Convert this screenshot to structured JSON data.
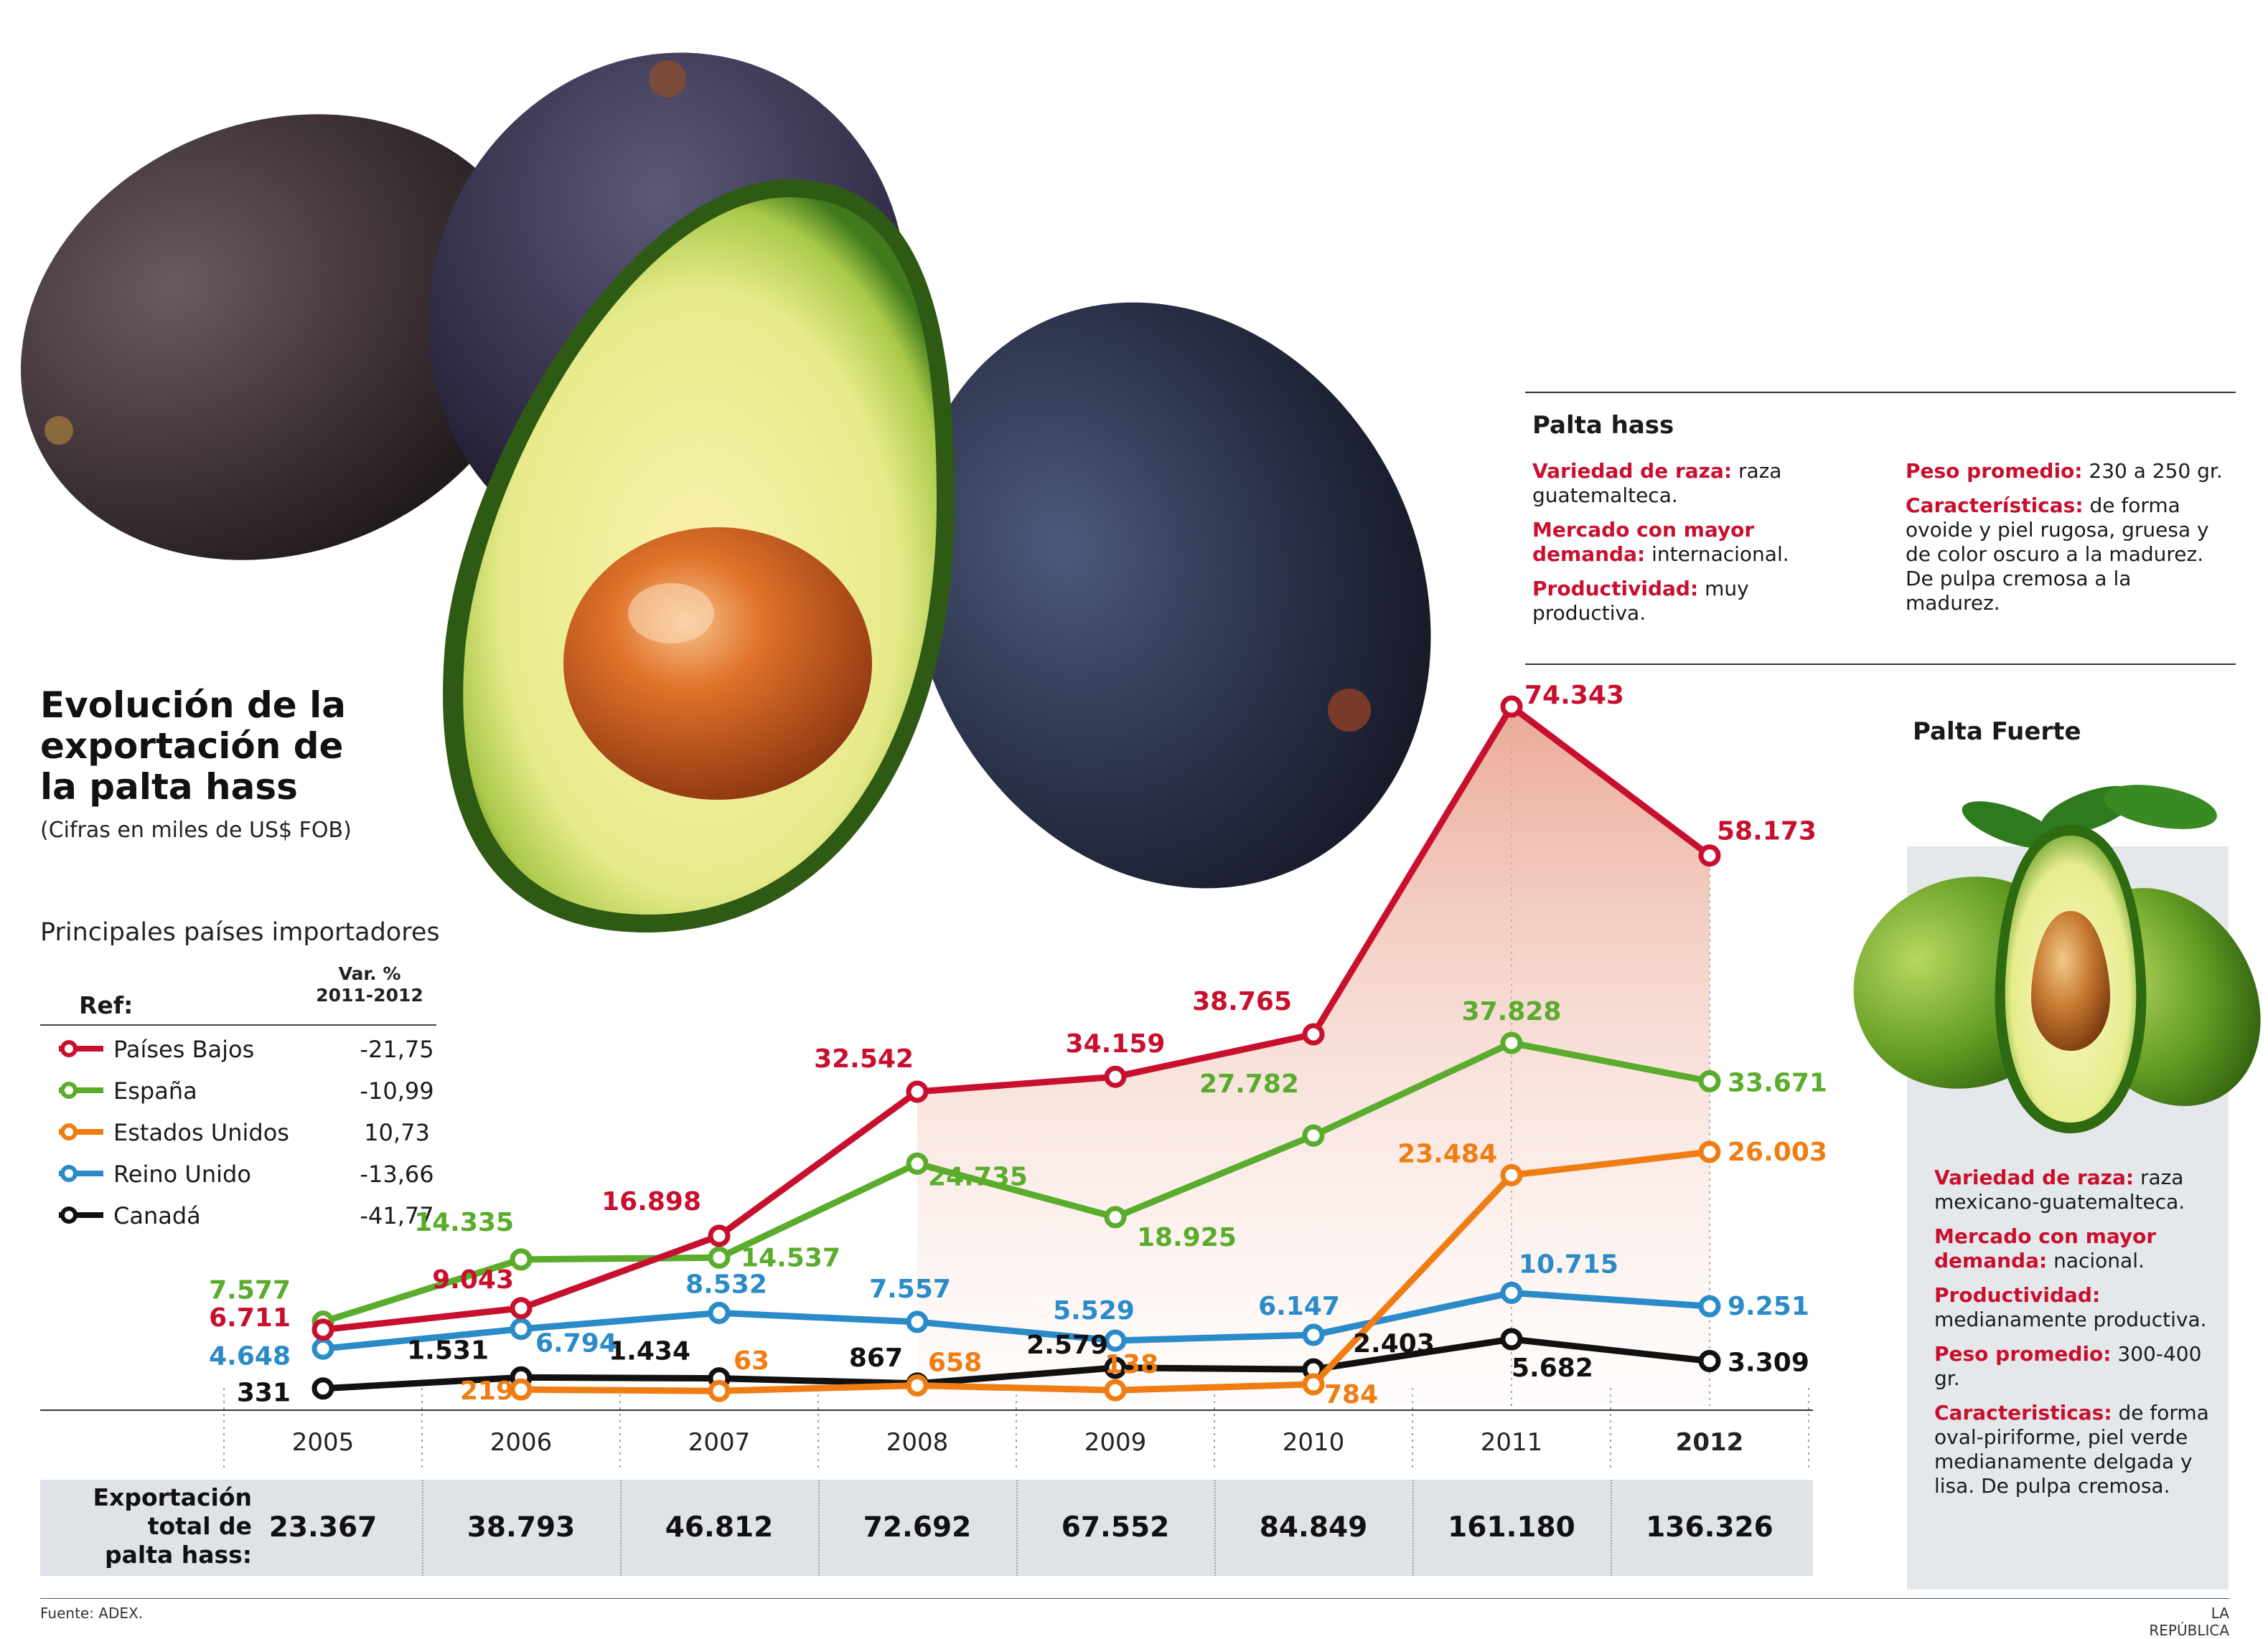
{
  "title_lines": [
    "Evolución de la",
    "exportación de",
    "la palta hass"
  ],
  "subtitle": "(Cifras en miles de US$ FOB)",
  "legend": {
    "title": "Principales países importadores",
    "ref_label": "Ref:",
    "var_header_1": "Var. %",
    "var_header_2": "2011-2012",
    "items": [
      {
        "name": "Países Bajos",
        "var": "-21,75",
        "color": "#c8102e"
      },
      {
        "name": "España",
        "var": "-10,99",
        "color": "#5aac2c"
      },
      {
        "name": "Estados Unidos",
        "var": "10,73",
        "color": "#f07d13"
      },
      {
        "name": "Reino Unido",
        "var": "-13,66",
        "color": "#2a8bc8"
      },
      {
        "name": "Canadá",
        "var": "-41,77",
        "color": "#111111"
      }
    ]
  },
  "chart_data": {
    "type": "line",
    "x": [
      "2005",
      "2006",
      "2007",
      "2008",
      "2009",
      "2010",
      "2011",
      "2012"
    ],
    "series": [
      {
        "name": "Países Bajos",
        "color": "#c8102e",
        "values": [
          6711,
          9043,
          16898,
          32542,
          34159,
          38765,
          74343,
          58173
        ],
        "labels": [
          "6.711",
          "9.043",
          "16.898",
          "32.542",
          "34.159",
          "38.765",
          "74.343",
          "58.173"
        ]
      },
      {
        "name": "España",
        "color": "#5aac2c",
        "values": [
          7577,
          14335,
          14537,
          24735,
          18925,
          27782,
          37828,
          33671
        ],
        "labels": [
          "7.577",
          "14.335",
          "14.537",
          "24.735",
          "18.925",
          "27.782",
          "37.828",
          "33.671"
        ]
      },
      {
        "name": "Estados Unidos",
        "color": "#f07d13",
        "values": [
          null,
          219,
          63,
          658,
          138,
          784,
          23484,
          26003
        ],
        "labels": [
          "",
          "219",
          "63",
          "658",
          "138",
          "784",
          "23.484",
          "26.003"
        ]
      },
      {
        "name": "Reino Unido",
        "color": "#2a8bc8",
        "values": [
          4648,
          6794,
          8532,
          7557,
          5529,
          6147,
          10715,
          9251
        ],
        "labels": [
          "4.648",
          "6.794",
          "8.532",
          "7.557",
          "5.529",
          "6.147",
          "10.715",
          "9.251"
        ]
      },
      {
        "name": "Canadá",
        "color": "#111111",
        "values": [
          331,
          1531,
          1434,
          867,
          2579,
          2403,
          5682,
          3309
        ],
        "labels": [
          "331",
          "1.531",
          "1.434",
          "867",
          "2.579",
          "2.403",
          "5.682",
          "3.309"
        ]
      }
    ],
    "highlighted_x": "2012",
    "grid": "dotted vertical separators between years"
  },
  "totals": {
    "label_lines": [
      "Exportación",
      "total de",
      "palta hass:"
    ],
    "values": [
      "23.367",
      "38.793",
      "46.812",
      "72.692",
      "67.552",
      "84.849",
      "161.180",
      "136.326"
    ]
  },
  "hass": {
    "title": "Palta hass",
    "left_items": [
      {
        "label": "Variedad de raza:",
        "text": "raza guatemalteca."
      },
      {
        "label": "Mercado con mayor demanda:",
        "text": "internacional."
      },
      {
        "label": "Productividad:",
        "text": "muy productiva."
      }
    ],
    "right_items": [
      {
        "label": "Peso promedio:",
        "text": "230 a 250 gr."
      },
      {
        "label": "Características:",
        "text": "de forma ovoide y piel rugosa,  gruesa y de color oscuro a la madurez. De pulpa cremosa a la madurez."
      }
    ]
  },
  "fuerte": {
    "title": "Palta Fuerte",
    "items": [
      {
        "label": "Variedad de raza:",
        "text": "raza mexicano-guatemalteca."
      },
      {
        "label": "Mercado con mayor demanda:",
        "text": "nacional."
      },
      {
        "label": "Productividad:",
        "text": "medianamente productiva."
      },
      {
        "label": "Peso promedio:",
        "text": "300-400 gr."
      },
      {
        "label": "Caracteristicas:",
        "text": "de forma oval-piriforme, piel verde medianamente delgada y lisa. De pulpa cremosa."
      }
    ]
  },
  "footer": {
    "source": "Fuente: ADEX.",
    "publisher": "LA REPÚBLICA"
  }
}
